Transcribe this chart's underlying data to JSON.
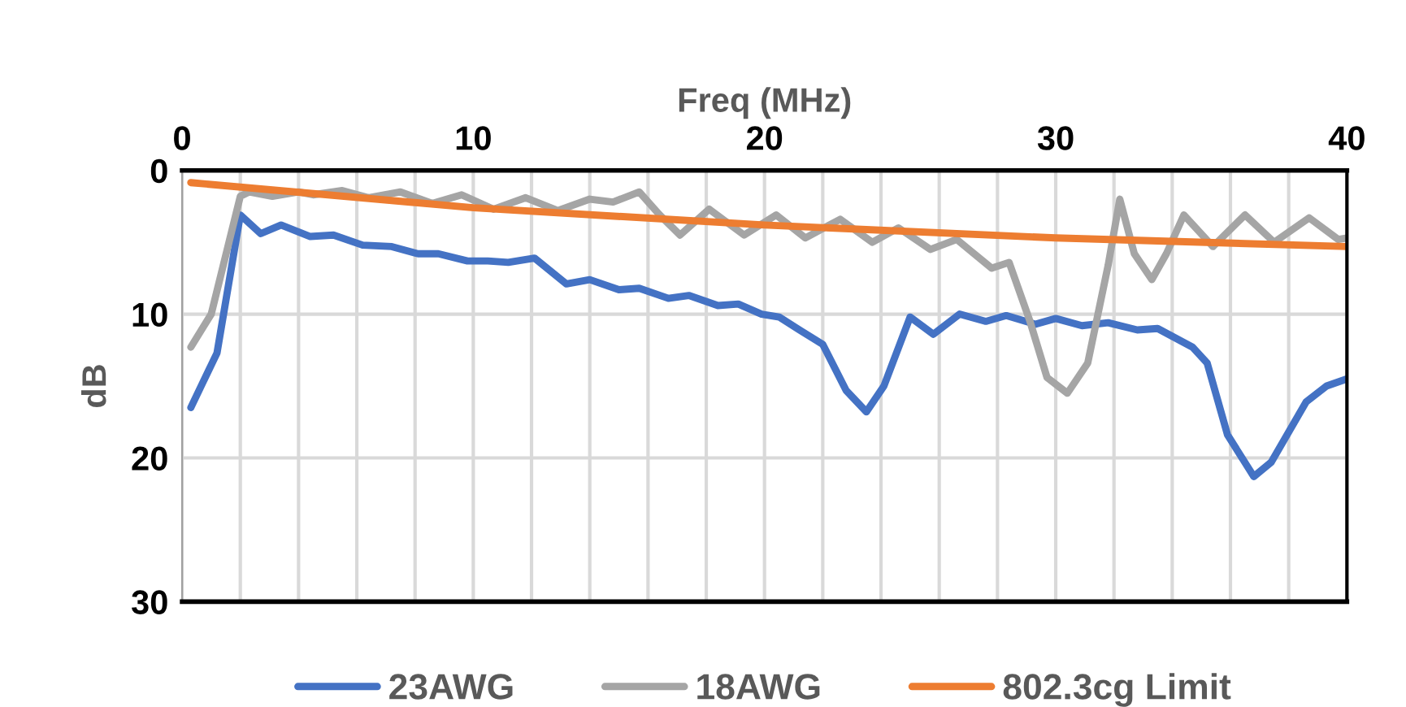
{
  "chart_data": {
    "type": "line",
    "xlabel": "Freq (MHz)",
    "ylabel": "dB",
    "xlim": [
      0,
      40
    ],
    "ylim": [
      30,
      0
    ],
    "xticks": [
      0,
      {
        "value": 2,
        "label": null
      },
      {
        "value": 4,
        "label": null
      },
      {
        "value": 6,
        "label": null
      },
      {
        "value": 8,
        "label": null
      },
      10,
      {
        "value": 12,
        "label": null
      },
      {
        "value": 14,
        "label": null
      },
      {
        "value": 16,
        "label": null
      },
      {
        "value": 18,
        "label": null
      },
      20,
      {
        "value": 22,
        "label": null
      },
      {
        "value": 24,
        "label": null
      },
      {
        "value": 26,
        "label": null
      },
      {
        "value": 28,
        "label": null
      },
      30,
      {
        "value": 32,
        "label": null
      },
      {
        "value": 34,
        "label": null
      },
      {
        "value": 36,
        "label": null
      },
      {
        "value": 38,
        "label": null
      },
      40
    ],
    "yticks": [
      0,
      10,
      20,
      30
    ],
    "grid": true,
    "legend": "bottom",
    "marker": "none",
    "line_style": "solid",
    "series": [
      {
        "name": "23AWG",
        "color": "#4472c4",
        "x": [
          0.3,
          1.2,
          2.0,
          2.7,
          3.4,
          4.4,
          5.2,
          6.2,
          7.2,
          8.1,
          8.8,
          9.8,
          10.5,
          11.2,
          12.1,
          13.2,
          14.0,
          15.0,
          15.7,
          16.7,
          17.4,
          18.4,
          19.1,
          19.9,
          20.5,
          21.2,
          22.0,
          22.8,
          23.5,
          24.1,
          25.0,
          25.8,
          26.7,
          27.6,
          28.3,
          29.3,
          30.0,
          30.9,
          31.8,
          32.8,
          33.5,
          34.7,
          35.2,
          35.9,
          36.8,
          37.4,
          38.6,
          39.3,
          40.0
        ],
        "values": [
          16.5,
          12.7,
          3.1,
          4.4,
          3.8,
          4.6,
          4.5,
          5.2,
          5.3,
          5.8,
          5.8,
          6.3,
          6.3,
          6.4,
          6.1,
          7.9,
          7.6,
          8.3,
          8.2,
          8.9,
          8.7,
          9.4,
          9.3,
          10.0,
          10.2,
          11.1,
          12.1,
          15.3,
          16.8,
          15.0,
          10.2,
          11.4,
          10.0,
          10.5,
          10.1,
          10.7,
          10.3,
          10.8,
          10.6,
          11.1,
          11.0,
          12.3,
          13.4,
          18.4,
          21.3,
          20.3,
          16.1,
          15.0,
          14.5
        ]
      },
      {
        "name": "18AWG",
        "color": "#a5a5a5",
        "x": [
          0.3,
          1.0,
          2.0,
          2.3,
          3.1,
          4.0,
          4.5,
          5.5,
          6.4,
          7.5,
          8.6,
          9.6,
          10.7,
          11.8,
          12.9,
          14.0,
          14.8,
          15.7,
          16.4,
          17.1,
          18.1,
          19.3,
          20.4,
          21.4,
          22.6,
          23.7,
          24.6,
          25.7,
          26.6,
          27.8,
          28.4,
          29.1,
          29.7,
          30.4,
          31.1,
          31.8,
          32.2,
          32.7,
          33.3,
          33.8,
          34.4,
          35.4,
          36.5,
          37.5,
          38.7,
          39.7,
          40.0
        ],
        "values": [
          12.3,
          10.0,
          1.8,
          1.5,
          1.8,
          1.5,
          1.7,
          1.4,
          1.9,
          1.5,
          2.3,
          1.7,
          2.7,
          1.9,
          2.8,
          2.0,
          2.2,
          1.5,
          3.1,
          4.5,
          2.7,
          4.5,
          3.1,
          4.7,
          3.4,
          5.0,
          4.0,
          5.5,
          4.8,
          6.8,
          6.4,
          10.4,
          14.4,
          15.5,
          13.4,
          6.6,
          2.0,
          5.8,
          7.6,
          5.8,
          3.1,
          5.3,
          3.1,
          5.0,
          3.3,
          4.8,
          4.7
        ]
      },
      {
        "name": "802.3cg Limit",
        "color": "#ed7d31",
        "x": [
          0.3,
          10,
          20,
          30,
          40
        ],
        "values": [
          0.85,
          2.6,
          3.8,
          4.7,
          5.3
        ]
      }
    ]
  }
}
